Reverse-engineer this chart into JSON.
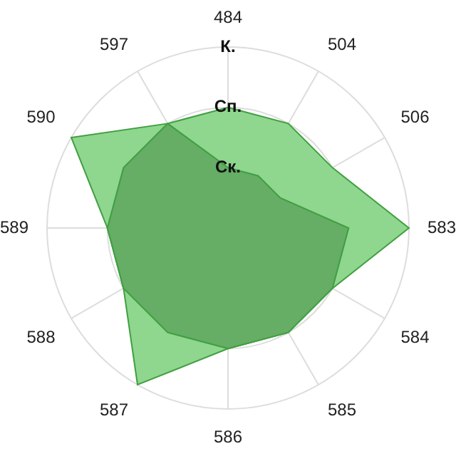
{
  "chart_data": {
    "type": "radar",
    "categories": [
      "484",
      "504",
      "506",
      "583",
      "584",
      "585",
      "586",
      "587",
      "588",
      "589",
      "590",
      "597"
    ],
    "series": [
      {
        "color": "#8fd68f",
        "values": [
          2,
          2,
          2,
          3,
          2,
          2,
          2,
          3,
          2,
          2,
          3,
          2
        ]
      },
      {
        "color": "#66ad66",
        "values": [
          1,
          1,
          1,
          2,
          2,
          2,
          2,
          2,
          2,
          2,
          2,
          2
        ]
      }
    ],
    "ylim": [
      0,
      3
    ],
    "yticks": [
      {
        "value": 1,
        "label": "Ск."
      },
      {
        "value": 2,
        "label": "Сп."
      },
      {
        "value": 3,
        "label": "К."
      }
    ],
    "grid": true
  }
}
